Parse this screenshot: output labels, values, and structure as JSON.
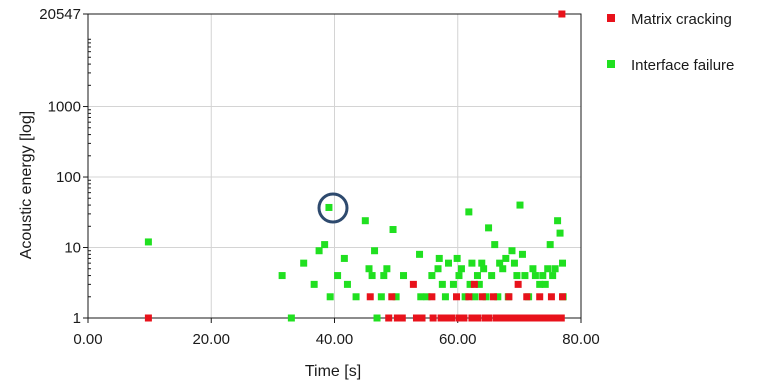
{
  "chart_data": {
    "type": "scatter",
    "xlabel": "Time [s]",
    "ylabel": "Acoustic energy [log]",
    "x_ticks": [
      "0.00",
      "20.00",
      "40.00",
      "60.00",
      "80.00"
    ],
    "y_ticks": [
      "1",
      "10",
      "100",
      "1000",
      "20547"
    ],
    "xlim": [
      0,
      80
    ],
    "ylim": [
      1,
      20547
    ],
    "y_scale": "log",
    "grid": true,
    "legend_position": "right",
    "series": [
      {
        "name": "Matrix cracking",
        "color": "#e8121b",
        "points": [
          [
            9.8,
            1
          ],
          [
            76.9,
            20547
          ],
          [
            45.8,
            2
          ],
          [
            48.8,
            1
          ],
          [
            49.3,
            2
          ],
          [
            50.2,
            1
          ],
          [
            51.0,
            1
          ],
          [
            52.8,
            3
          ],
          [
            53.3,
            1
          ],
          [
            54.2,
            1
          ],
          [
            55.8,
            2
          ],
          [
            56.0,
            1
          ],
          [
            57.3,
            1
          ],
          [
            58.0,
            1
          ],
          [
            59.0,
            1
          ],
          [
            59.8,
            2
          ],
          [
            60.2,
            1
          ],
          [
            61.0,
            1
          ],
          [
            61.8,
            2
          ],
          [
            62.3,
            1
          ],
          [
            62.7,
            3
          ],
          [
            63.3,
            1
          ],
          [
            64.0,
            2
          ],
          [
            64.5,
            1
          ],
          [
            65.0,
            1
          ],
          [
            65.8,
            2
          ],
          [
            66.2,
            1
          ],
          [
            67.0,
            1
          ],
          [
            67.8,
            1
          ],
          [
            68.3,
            2
          ],
          [
            68.8,
            1
          ],
          [
            69.2,
            1
          ],
          [
            69.8,
            3
          ],
          [
            70.2,
            1
          ],
          [
            70.8,
            1
          ],
          [
            71.2,
            2
          ],
          [
            71.8,
            1
          ],
          [
            72.3,
            1
          ],
          [
            72.8,
            1
          ],
          [
            73.3,
            2
          ],
          [
            73.8,
            1
          ],
          [
            74.3,
            1
          ],
          [
            74.8,
            1
          ],
          [
            75.2,
            2
          ],
          [
            75.8,
            1
          ],
          [
            76.3,
            1
          ],
          [
            76.8,
            1
          ],
          [
            77.0,
            2
          ]
        ]
      },
      {
        "name": "Interface failure",
        "color": "#20e020",
        "points": [
          [
            9.8,
            12
          ],
          [
            31.5,
            4
          ],
          [
            33.0,
            1
          ],
          [
            35.0,
            6
          ],
          [
            36.7,
            3
          ],
          [
            37.5,
            9
          ],
          [
            38.4,
            11
          ],
          [
            39.1,
            37
          ],
          [
            39.3,
            2
          ],
          [
            40.5,
            4
          ],
          [
            41.6,
            7
          ],
          [
            42.1,
            3
          ],
          [
            43.5,
            2
          ],
          [
            45.0,
            24
          ],
          [
            45.6,
            5
          ],
          [
            46.1,
            4
          ],
          [
            46.5,
            9
          ],
          [
            46.9,
            1
          ],
          [
            47.6,
            2
          ],
          [
            48.0,
            4
          ],
          [
            48.5,
            5
          ],
          [
            49.5,
            18
          ],
          [
            50.0,
            2
          ],
          [
            50.4,
            1
          ],
          [
            51.2,
            4
          ],
          [
            53.8,
            8
          ],
          [
            54.0,
            2
          ],
          [
            55.0,
            2
          ],
          [
            55.8,
            4
          ],
          [
            56.8,
            5
          ],
          [
            57.0,
            7
          ],
          [
            57.5,
            3
          ],
          [
            58.0,
            2
          ],
          [
            58.5,
            6
          ],
          [
            58.9,
            1
          ],
          [
            59.3,
            3
          ],
          [
            59.9,
            7
          ],
          [
            60.2,
            4
          ],
          [
            60.6,
            5
          ],
          [
            61.2,
            2
          ],
          [
            61.8,
            32
          ],
          [
            62.0,
            3
          ],
          [
            62.3,
            6
          ],
          [
            62.8,
            2
          ],
          [
            63.2,
            4
          ],
          [
            63.5,
            3
          ],
          [
            63.9,
            6
          ],
          [
            64.2,
            5
          ],
          [
            64.6,
            2
          ],
          [
            65.0,
            19
          ],
          [
            65.5,
            4
          ],
          [
            66.0,
            11
          ],
          [
            66.5,
            2
          ],
          [
            66.8,
            6
          ],
          [
            67.3,
            5
          ],
          [
            67.8,
            7
          ],
          [
            68.2,
            2
          ],
          [
            68.8,
            9
          ],
          [
            69.2,
            6
          ],
          [
            69.6,
            4
          ],
          [
            70.1,
            40
          ],
          [
            70.5,
            8
          ],
          [
            70.9,
            4
          ],
          [
            71.5,
            2
          ],
          [
            72.2,
            5
          ],
          [
            72.6,
            4
          ],
          [
            73.3,
            3
          ],
          [
            73.8,
            4
          ],
          [
            74.2,
            3
          ],
          [
            74.6,
            5
          ],
          [
            75.0,
            11
          ],
          [
            75.4,
            4
          ],
          [
            75.8,
            5
          ],
          [
            76.2,
            24
          ],
          [
            76.6,
            16
          ],
          [
            77.0,
            6
          ],
          [
            77.1,
            2
          ]
        ]
      }
    ]
  }
}
